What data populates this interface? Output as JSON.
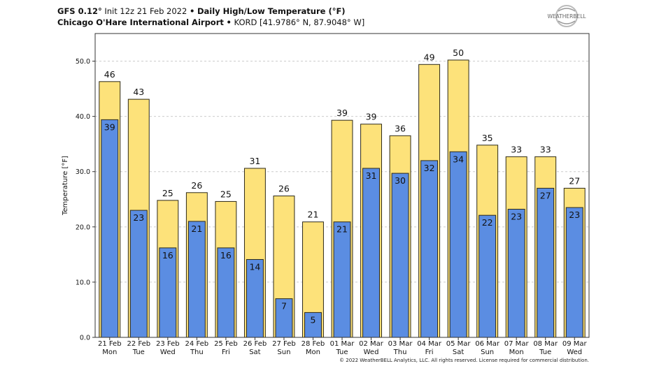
{
  "header": {
    "line1_model": "GFS 0.12°",
    "line1_init": "Init 12z 21 Feb 2022",
    "line1_sep": "•",
    "line1_title": "Daily High/Low Temperature (°F)",
    "line2_station": "Chicago O'Hare International Airport",
    "line2_sep": "•",
    "line2_coords": "KORD [41.9786° N, 87.9048° W]"
  },
  "logo": {
    "text": "WEATHERBELL"
  },
  "copyright": "© 2022 WeatherBELL Analytics, LLC. All rights reserved. License required for commercial distribution.",
  "colors": {
    "high": "#fde27a",
    "low": "#5b8de2",
    "bar_border": "#2e2a18",
    "grid": "#cccccc"
  },
  "chart_data": {
    "type": "bar",
    "title": "Daily High/Low Temperature (°F)",
    "ylabel": "Temperature [°F]",
    "xlabel": "",
    "ylim": [
      0,
      55
    ],
    "yticks": [
      0,
      10,
      20,
      30,
      40,
      50
    ],
    "ytick_labels": [
      "0.0",
      "10.0",
      "20.0",
      "30.0",
      "40.0",
      "50.0"
    ],
    "grid": true,
    "categories": [
      {
        "date": "21 Feb",
        "day": "Mon"
      },
      {
        "date": "22 Feb",
        "day": "Tue"
      },
      {
        "date": "23 Feb",
        "day": "Wed"
      },
      {
        "date": "24 Feb",
        "day": "Thu"
      },
      {
        "date": "25 Feb",
        "day": "Fri"
      },
      {
        "date": "26 Feb",
        "day": "Sat"
      },
      {
        "date": "27 Feb",
        "day": "Sun"
      },
      {
        "date": "28 Feb",
        "day": "Mon"
      },
      {
        "date": "01 Mar",
        "day": "Tue"
      },
      {
        "date": "02 Mar",
        "day": "Wed"
      },
      {
        "date": "03 Mar",
        "day": "Thu"
      },
      {
        "date": "04 Mar",
        "day": "Fri"
      },
      {
        "date": "05 Mar",
        "day": "Sat"
      },
      {
        "date": "06 Mar",
        "day": "Sun"
      },
      {
        "date": "07 Mar",
        "day": "Mon"
      },
      {
        "date": "08 Mar",
        "day": "Tue"
      },
      {
        "date": "09 Mar",
        "day": "Wed"
      }
    ],
    "series": [
      {
        "key": "high",
        "values": [
          46.3,
          43.1,
          24.8,
          26.2,
          24.6,
          30.6,
          25.6,
          20.9,
          39.3,
          38.6,
          36.5,
          49.4,
          50.2,
          34.8,
          32.7,
          32.7,
          27.0
        ],
        "labels": [
          "46",
          "43",
          "25",
          "26",
          "25",
          "31",
          "26",
          "21",
          "39",
          "39",
          "36",
          "49",
          "50",
          "35",
          "33",
          "33",
          "27"
        ]
      },
      {
        "key": "low",
        "values": [
          39.4,
          23.0,
          16.2,
          21.0,
          16.2,
          14.1,
          7.0,
          4.5,
          20.9,
          30.6,
          29.7,
          32.0,
          33.6,
          22.1,
          23.2,
          27.0,
          23.5
        ],
        "labels": [
          "39",
          "23",
          "16",
          "21",
          "16",
          "14",
          "7",
          "5",
          "21",
          "31",
          "30",
          "32",
          "34",
          "22",
          "23",
          "27",
          "23"
        ]
      }
    ]
  }
}
